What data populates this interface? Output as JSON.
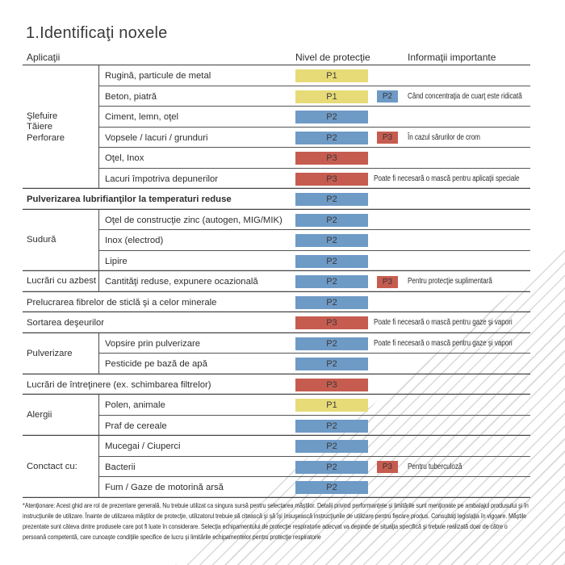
{
  "page": {
    "title": "1.Identificaţi noxele"
  },
  "table": {
    "headers": {
      "applications": "Aplicaţii",
      "protection_level": "Nivel de protecţie",
      "important_info": "Informaţii importante"
    },
    "level_colors": {
      "P1": "#e7db78",
      "P2": "#6e9ac6",
      "P3": "#c65c50"
    },
    "groups": [
      {
        "label_lines": [
          "Şlefuire",
          "Tăiere",
          "Perforare"
        ],
        "rows": [
          {
            "label": "Rugină, particule de metal",
            "level": "P1"
          },
          {
            "label": "Beton, piatră",
            "level": "P1",
            "badge": "P2",
            "note": "Când concentraţia de cuarţ este ridicată"
          },
          {
            "label": "Ciment, lemn, oţel",
            "level": "P2"
          },
          {
            "label": "Vopsele / lacuri / grunduri",
            "level": "P2",
            "badge": "P3",
            "note": "În cazul sărurilor de crom"
          },
          {
            "label": "Oţel, Inox",
            "level": "P3"
          },
          {
            "label": "Lacuri împotriva depunerilor",
            "level": "P3",
            "note": "Poate fi necesară o mască pentru aplicaţii speciale"
          }
        ]
      },
      {
        "full_row": true,
        "rows": [
          {
            "label": "Pulverizarea lubrifianţilor la temperaturi reduse",
            "level": "P2",
            "bold": true
          }
        ]
      },
      {
        "label_lines": [
          "Sudură"
        ],
        "rows": [
          {
            "label": "Oţel de construcţie zinc (autogen, MIG/MIK)",
            "level": "P2"
          },
          {
            "label": "Inox (electrod)",
            "level": "P2"
          },
          {
            "label": "Lipire",
            "level": "P2"
          }
        ]
      },
      {
        "label_lines": [
          "Lucrări cu azbest"
        ],
        "rows": [
          {
            "label": "Cantităţi reduse, expunere ocazională",
            "level": "P2",
            "badge": "P3",
            "note": "Pentru protecţie suplimentară"
          }
        ]
      },
      {
        "full_row": true,
        "rows": [
          {
            "label": "Prelucrarea fibrelor de sticlă şi a celor minerale",
            "level": "P2"
          }
        ]
      },
      {
        "full_row": true,
        "rows": [
          {
            "label": "Sortarea deşeurilor",
            "level": "P3",
            "note": "Poate fi necesară o mască pentru gaze şi vapori"
          }
        ]
      },
      {
        "label_lines": [
          "Pulverizare"
        ],
        "rows": [
          {
            "label": "Vopsire prin pulverizare",
            "level": "P2",
            "note": "Poate fi necesară o mască pentru gaze şi vapori"
          },
          {
            "label": "Pesticide pe bază de apă",
            "level": "P2"
          }
        ]
      },
      {
        "full_row": true,
        "rows": [
          {
            "label": "Lucrări de întreţinere (ex. schimbarea filtrelor)",
            "level": "P3"
          }
        ]
      },
      {
        "label_lines": [
          "Alergii"
        ],
        "rows": [
          {
            "label": "Polen, animale",
            "level": "P1"
          },
          {
            "label": "Praf de cereale",
            "level": "P2"
          }
        ]
      },
      {
        "label_lines": [
          "Conctact cu:"
        ],
        "rows": [
          {
            "label": "Mucegai / Ciuperci",
            "level": "P2"
          },
          {
            "label": "Bacterii",
            "level": "P2",
            "badge": "P3",
            "note": "Pentru tuberculoză"
          },
          {
            "label": "Fum / Gaze de motorină arsă",
            "level": "P2"
          }
        ]
      }
    ]
  },
  "decoration": {
    "hatch_color": "#d9d9d9"
  },
  "footnote": "*Atenţionare: Acest ghid are rol de prezentare generală. Nu trebuie utilizat ca singura sursă pentru selectarea măştilor. Detalii privind performanţele şi limitările sunt menţionate pe ambalajul produsului şi în instrucţiunile de utilizare. Înainte de utilizarea măştilor de protecţie, utilizatorul trebuie să citească şi să îşi însuşească instrucţiunile de utilizare pentru fiecare produs. Consultaţi legislaţia în vigoare. Măştile prezentate sunt câteva dintre produsele care pot fi luate în considerare. Selecţia echipamentului de protecţie respiratorie adecvat va depinde de situaţia specifică şi trebuie realizată doar de către o persoană competentă, care cunoaşte condiţiile specifice de lucru şi limitările echipamentelor pentru protecţie respiratorie"
}
